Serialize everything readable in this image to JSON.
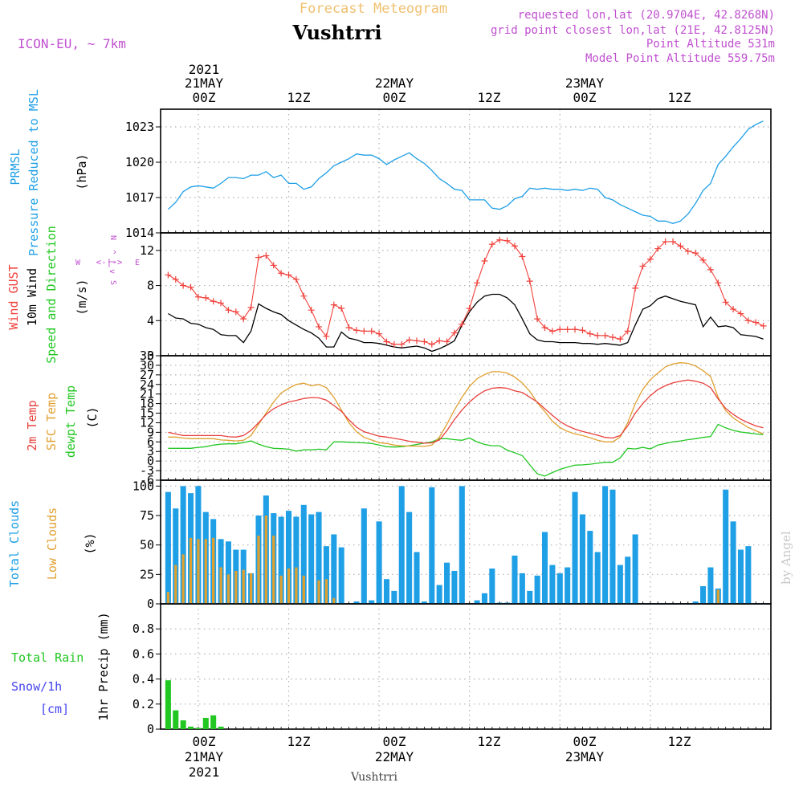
{
  "header": {
    "subtitle": "Forecast Meteogram",
    "station": "Vushtrri",
    "model": "ICON-EU, ~ 7km",
    "requested": "requested lon,lat (20.9704E, 42.8268N)",
    "gridpoint": "grid point closest lon,lat (21E, 42.8125N)",
    "point_alt": "Point Altitude 531m",
    "model_alt": "Model Point Altitude 559.75m",
    "footer": "Vushtrri",
    "credit": "by Angel"
  },
  "time_axis": {
    "top_ticks": [
      "00Z",
      "12Z",
      "00Z",
      "12Z",
      "00Z",
      "12Z"
    ],
    "top_dates": [
      "21MAY",
      "22MAY",
      "23MAY"
    ],
    "year": "2021",
    "bottom_ticks": [
      "00Z",
      "12Z",
      "00Z",
      "12Z",
      "00Z",
      "12Z"
    ],
    "bottom_dates": [
      "21MAY",
      "22MAY",
      "23MAY"
    ]
  },
  "panels": {
    "pressure": {
      "label1": "PRMSL",
      "label2": "Pressure Reduced to MSL",
      "unit": "(hPa)",
      "yticks": [
        "1014",
        "1017",
        "1020",
        "1023"
      ]
    },
    "wind": {
      "label_gust": "Wind GUST",
      "label_wind": "10m Wind",
      "label_dir": "Speed and Direction",
      "unit": "(m/s)",
      "yticks": [
        "0",
        "4",
        "8",
        "12"
      ],
      "compass_n": "N",
      "compass_s": "S",
      "compass_e": "E",
      "compass_w": "W",
      "compass_ns_arrows": "^ | v",
      "compass_ew_arrows": "<-|->"
    },
    "temp": {
      "label_t2m": "2m Temp",
      "label_sfc": "SFC Temp",
      "label_dew": "dewpt Temp",
      "unit": "(C)",
      "yticks": [
        "-6",
        "-3",
        "0",
        "3",
        "6",
        "9",
        "12",
        "15",
        "18",
        "21",
        "24",
        "27",
        "30",
        "33"
      ]
    },
    "clouds": {
      "label_total": "Total Clouds",
      "label_low": "Low Clouds",
      "unit": "(%)",
      "yticks": [
        "0",
        "25",
        "50",
        "75",
        "100"
      ]
    },
    "precip": {
      "label_total": "Total Rain",
      "label_snow": "Snow/1h",
      "label_cm": "[cm]",
      "label_axis": "1hr Precip (mm)",
      "yticks": [
        "0",
        "0.2",
        "0.4",
        "0.6",
        "0.8"
      ]
    }
  },
  "colors": {
    "pressure": "#1e9fe6",
    "gust": "#f0413c",
    "wind": "#000000",
    "t2m": "#e8413c",
    "sfc": "#e0a030",
    "dew": "#22c722",
    "cloud_total": "#1e9fe6",
    "cloud_low": "#e0a030",
    "rain": "#22c722",
    "snow": "#4444ee",
    "model": "#c050d0",
    "title": "#f0c070",
    "grid": "#b0b0b0"
  },
  "chart_data": [
    {
      "type": "line",
      "title": "PRMSL Pressure Reduced to MSL",
      "ylabel": "(hPa)",
      "ylim": [
        1014,
        1024.5
      ],
      "x_hours": [
        -4,
        -3,
        -2,
        -1,
        0,
        1,
        2,
        3,
        4,
        5,
        6,
        7,
        8,
        9,
        10,
        11,
        12,
        13,
        14,
        15,
        16,
        17,
        18,
        19,
        20,
        21,
        22,
        23,
        24,
        25,
        26,
        27,
        28,
        29,
        30,
        31,
        32,
        33,
        34,
        35,
        36,
        37,
        38,
        39,
        40,
        41,
        42,
        43,
        44,
        45,
        46,
        47,
        48,
        49,
        50,
        51,
        52,
        53,
        54,
        55,
        56,
        57,
        58,
        59,
        60,
        61,
        62,
        63,
        64,
        65,
        66,
        67,
        68,
        69,
        70,
        71,
        72,
        73,
        74,
        75
      ],
      "series": [
        {
          "name": "PRMSL",
          "values": [
            1016.0,
            1016.6,
            1017.5,
            1017.9,
            1018.0,
            1017.9,
            1017.8,
            1018.2,
            1018.7,
            1018.7,
            1018.6,
            1018.9,
            1018.9,
            1019.2,
            1018.7,
            1018.9,
            1018.2,
            1018.2,
            1017.7,
            1017.9,
            1018.6,
            1019.1,
            1019.7,
            1020.0,
            1020.3,
            1020.7,
            1020.6,
            1020.6,
            1020.3,
            1019.8,
            1020.2,
            1020.5,
            1020.8,
            1020.3,
            1019.9,
            1019.3,
            1018.6,
            1018.2,
            1017.7,
            1017.6,
            1016.8,
            1016.8,
            1016.8,
            1016.1,
            1016.0,
            1016.3,
            1016.9,
            1017.1,
            1017.8,
            1017.7,
            1017.8,
            1017.7,
            1017.7,
            1017.6,
            1017.7,
            1017.6,
            1017.8,
            1017.7,
            1017.0,
            1016.8,
            1016.4,
            1016.1,
            1015.8,
            1015.5,
            1015.4,
            1015.0,
            1015.0,
            1014.8,
            1015.0,
            1015.6,
            1016.5,
            1017.6,
            1018.2,
            1019.8,
            1020.5,
            1021.3,
            1022.0,
            1022.8,
            1023.2,
            1023.5
          ]
        }
      ]
    },
    {
      "type": "line",
      "title": "Wind GUST / 10m Wind Speed and Direction",
      "ylabel": "(m/s)",
      "ylim": [
        0,
        14
      ],
      "x_hours": [
        -4,
        -3,
        -2,
        -1,
        0,
        1,
        2,
        3,
        4,
        5,
        6,
        7,
        8,
        9,
        10,
        11,
        12,
        13,
        14,
        15,
        16,
        17,
        18,
        19,
        20,
        21,
        22,
        23,
        24,
        25,
        26,
        27,
        28,
        29,
        30,
        31,
        32,
        33,
        34,
        35,
        36,
        37,
        38,
        39,
        40,
        41,
        42,
        43,
        44,
        45,
        46,
        47,
        48,
        49,
        50,
        51,
        52,
        53,
        54,
        55,
        56,
        57,
        58,
        59,
        60,
        61,
        62,
        63,
        64,
        65,
        66,
        67,
        68,
        69,
        70,
        71,
        72,
        73,
        74,
        75
      ],
      "series": [
        {
          "name": "Wind GUST",
          "values": [
            9.2,
            8.7,
            8.0,
            7.8,
            6.7,
            6.6,
            6.2,
            6.0,
            5.2,
            5.0,
            4.2,
            5.5,
            11.2,
            11.4,
            10.3,
            9.4,
            9.2,
            8.7,
            6.8,
            5.2,
            3.3,
            2.2,
            5.8,
            5.4,
            3.2,
            2.9,
            2.8,
            2.8,
            2.5,
            1.6,
            1.3,
            1.3,
            1.8,
            1.7,
            1.6,
            1.3,
            1.7,
            1.6,
            2.6,
            3.6,
            5.4,
            8.3,
            10.8,
            12.7,
            13.2,
            13.1,
            12.5,
            11.3,
            8.5,
            4.2,
            3.2,
            2.8,
            3.0,
            3.0,
            3.0,
            2.9,
            2.5,
            2.3,
            2.3,
            2.1,
            1.9,
            2.8,
            7.7,
            10.2,
            11.0,
            12.2,
            13.0,
            13.0,
            12.5,
            11.9,
            11.7,
            10.9,
            9.8,
            8.3,
            6.1,
            5.3,
            4.8,
            4.0,
            3.8,
            3.4
          ]
        },
        {
          "name": "10m Wind",
          "values": [
            4.8,
            4.3,
            4.2,
            3.7,
            3.6,
            3.2,
            3.0,
            2.4,
            2.3,
            2.3,
            1.5,
            2.8,
            5.9,
            5.4,
            5.0,
            4.7,
            4.0,
            3.5,
            3.0,
            2.6,
            2.0,
            1.0,
            1.0,
            2.7,
            2.0,
            1.8,
            1.5,
            1.5,
            1.4,
            1.2,
            1.0,
            0.9,
            1.0,
            1.1,
            0.9,
            0.5,
            0.8,
            1.2,
            1.7,
            3.5,
            5.0,
            6.1,
            6.8,
            7.0,
            7.0,
            6.6,
            5.8,
            4.2,
            2.5,
            1.8,
            1.6,
            1.6,
            1.5,
            1.5,
            1.5,
            1.4,
            1.4,
            1.3,
            1.4,
            1.3,
            1.2,
            1.5,
            3.5,
            5.3,
            5.7,
            6.5,
            6.8,
            6.5,
            6.2,
            6.0,
            5.8,
            3.3,
            4.4,
            3.3,
            3.4,
            3.2,
            2.4,
            2.3,
            2.2,
            1.9
          ]
        }
      ]
    },
    {
      "type": "line",
      "title": "2m Temp / SFC Temp / dewpt Temp",
      "ylabel": "(C)",
      "ylim": [
        -6,
        33
      ],
      "x_hours": [
        -4,
        -3,
        -2,
        -1,
        0,
        1,
        2,
        3,
        4,
        5,
        6,
        7,
        8,
        9,
        10,
        11,
        12,
        13,
        14,
        15,
        16,
        17,
        18,
        19,
        20,
        21,
        22,
        23,
        24,
        25,
        26,
        27,
        28,
        29,
        30,
        31,
        32,
        33,
        34,
        35,
        36,
        37,
        38,
        39,
        40,
        41,
        42,
        43,
        44,
        45,
        46,
        47,
        48,
        49,
        50,
        51,
        52,
        53,
        54,
        55,
        56,
        57,
        58,
        59,
        60,
        61,
        62,
        63,
        64,
        65,
        66,
        67,
        68,
        69,
        70,
        71,
        72,
        73,
        74,
        75
      ],
      "series": [
        {
          "name": "2m Temp",
          "values": [
            9.0,
            8.5,
            8.0,
            8.0,
            8.0,
            8.0,
            8.0,
            8.0,
            7.6,
            7.5,
            8.0,
            9.6,
            12.0,
            14.6,
            16.4,
            17.6,
            18.5,
            19.0,
            19.6,
            19.9,
            19.8,
            19.1,
            17.4,
            15.6,
            12.9,
            10.6,
            9.2,
            8.5,
            7.8,
            7.5,
            7.1,
            6.7,
            6.2,
            5.9,
            5.6,
            5.7,
            6.6,
            9.5,
            13.0,
            16.0,
            18.5,
            20.5,
            22.0,
            22.8,
            23.0,
            22.8,
            22.0,
            21.5,
            20.0,
            18.5,
            16.4,
            14.3,
            12.4,
            11.0,
            10.0,
            9.3,
            8.7,
            8.1,
            7.4,
            7.2,
            8.0,
            11.0,
            15.0,
            18.0,
            20.5,
            22.4,
            23.6,
            24.5,
            25.0,
            25.4,
            25.0,
            24.4,
            23.0,
            19.5,
            16.5,
            14.6,
            13.1,
            12.0,
            11.0,
            10.4
          ]
        },
        {
          "name": "SFC Temp",
          "values": [
            7.5,
            7.5,
            7.2,
            7.0,
            7.0,
            7.0,
            7.0,
            6.6,
            6.5,
            6.3,
            6.5,
            8.0,
            11.5,
            15.0,
            18.5,
            21.3,
            22.8,
            24.0,
            24.4,
            23.6,
            24.0,
            23.0,
            20.0,
            16.0,
            12.0,
            9.2,
            7.4,
            6.6,
            5.8,
            5.5,
            5.0,
            4.8,
            4.7,
            4.7,
            4.6,
            5.0,
            7.5,
            11.5,
            16.0,
            20.0,
            23.4,
            25.8,
            27.1,
            28.0,
            28.0,
            27.6,
            26.3,
            24.5,
            21.8,
            18.3,
            15.5,
            12.5,
            10.5,
            9.3,
            8.5,
            8.0,
            7.3,
            6.5,
            6.0,
            6.0,
            7.5,
            12.0,
            18.0,
            22.5,
            25.5,
            27.6,
            29.5,
            30.4,
            30.8,
            30.6,
            29.8,
            28.3,
            26.5,
            20.0,
            15.8,
            13.5,
            12.0,
            10.5,
            9.5,
            8.5
          ]
        },
        {
          "name": "dewpt Temp",
          "values": [
            4.0,
            4.0,
            4.0,
            4.0,
            4.3,
            4.5,
            5.0,
            5.3,
            5.4,
            5.4,
            5.8,
            6.3,
            5.3,
            4.5,
            4.0,
            3.9,
            3.7,
            3.1,
            3.5,
            3.5,
            3.7,
            3.5,
            6.0,
            6.0,
            5.9,
            5.8,
            5.7,
            5.5,
            5.0,
            4.5,
            4.4,
            4.5,
            4.8,
            5.2,
            5.6,
            6.0,
            7.0,
            7.0,
            6.7,
            6.5,
            7.2,
            6.0,
            5.2,
            4.8,
            4.8,
            3.4,
            2.6,
            1.7,
            -1.2,
            -4.0,
            -4.7,
            -3.6,
            -2.6,
            -1.9,
            -1.3,
            -1.2,
            -1.0,
            -0.7,
            -0.4,
            -0.4,
            1.0,
            4.0,
            3.8,
            4.3,
            3.8,
            5.0,
            5.5,
            6.0,
            6.3,
            6.7,
            7.0,
            7.4,
            7.7,
            11.5,
            10.4,
            9.6,
            9.1,
            8.8,
            8.5,
            8.3
          ]
        }
      ]
    },
    {
      "type": "bar",
      "title": "Total Clouds / Low Clouds",
      "ylabel": "(%)",
      "ylim": [
        0,
        105
      ],
      "x_hours": [
        -4,
        -3,
        -2,
        -1,
        0,
        1,
        2,
        3,
        4,
        5,
        6,
        7,
        8,
        9,
        10,
        11,
        12,
        13,
        14,
        15,
        16,
        17,
        18,
        19,
        20,
        21,
        22,
        23,
        24,
        25,
        26,
        27,
        28,
        29,
        30,
        31,
        32,
        33,
        34,
        35,
        36,
        37,
        38,
        39,
        40,
        41,
        42,
        43,
        44,
        45,
        46,
        47,
        48,
        49,
        50,
        51,
        52,
        53,
        54,
        55,
        56,
        57,
        58,
        59,
        60,
        61,
        62,
        63,
        64,
        65,
        66,
        67,
        68,
        69,
        70,
        71,
        72,
        73,
        74,
        75
      ],
      "series": [
        {
          "name": "Total Clouds",
          "values": [
            95,
            81,
            100,
            94,
            100,
            78,
            72,
            55,
            53,
            46,
            46,
            26,
            75,
            92,
            77,
            74,
            79,
            74,
            84,
            76,
            78,
            49,
            59,
            48,
            0,
            2,
            81,
            3,
            70,
            21,
            11,
            100,
            78,
            44,
            2,
            99,
            16,
            35,
            28,
            100,
            0,
            3,
            9,
            30,
            1,
            1,
            41,
            26,
            11,
            24,
            61,
            33,
            26,
            31,
            95,
            76,
            62,
            44,
            100,
            97,
            33,
            40,
            59,
            0,
            0,
            0,
            0,
            0,
            0,
            0,
            2,
            15,
            31,
            13,
            97,
            70,
            46,
            49,
            0,
            0
          ]
        },
        {
          "name": "Low Clouds",
          "values": [
            10,
            33,
            42,
            56,
            55,
            55,
            56,
            31,
            25,
            28,
            29,
            26,
            58,
            75,
            58,
            24,
            30,
            31,
            24,
            0,
            20,
            21,
            5,
            0,
            0,
            0,
            0,
            0,
            0,
            0,
            0,
            0,
            0,
            0,
            0,
            0,
            0,
            0,
            0,
            0,
            0,
            0,
            0,
            0,
            0,
            0,
            0,
            0,
            0,
            0,
            0,
            0,
            0,
            0,
            0,
            0,
            0,
            0,
            0,
            0,
            0,
            0,
            0,
            0,
            0,
            0,
            0,
            0,
            0,
            0,
            0,
            0,
            0,
            12,
            0,
            0,
            0,
            0,
            0,
            0
          ]
        }
      ]
    },
    {
      "type": "bar",
      "title": "1hr Precip (mm)",
      "ylabel": "1hr Precip (mm)",
      "ylim": [
        0,
        1.0
      ],
      "x_hours": [
        -4,
        -3,
        -2,
        -1,
        0,
        1,
        2,
        3
      ],
      "series": [
        {
          "name": "Total Rain",
          "values": [
            0.39,
            0.15,
            0.07,
            0.02,
            0.01,
            0.09,
            0.11,
            0.02
          ]
        }
      ]
    }
  ]
}
